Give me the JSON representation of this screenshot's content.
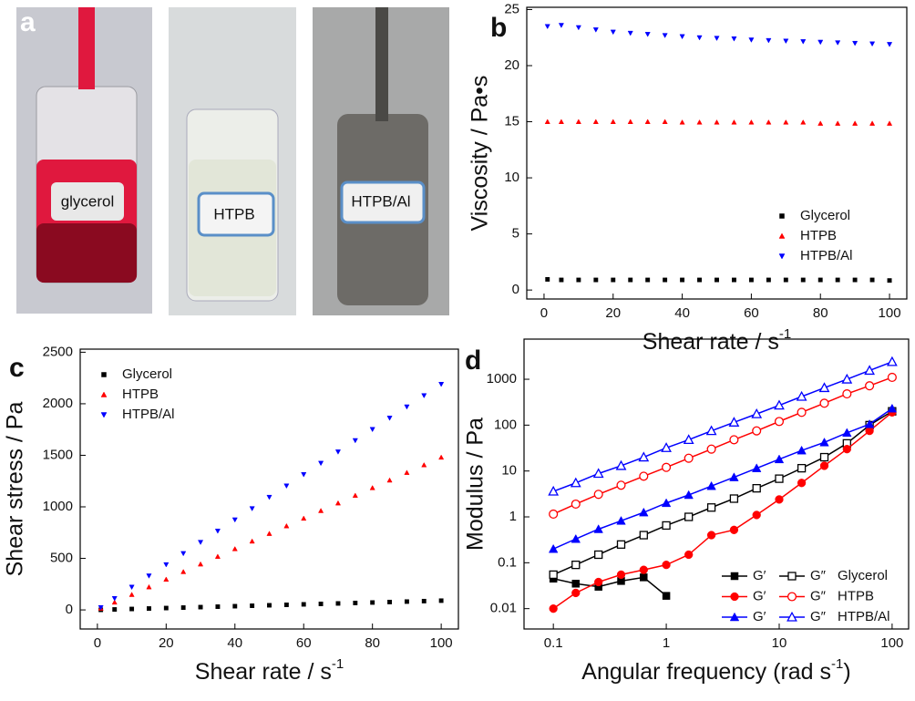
{
  "photo_panel": {
    "panel": "a",
    "labels": [
      "glycerol",
      "HTPB",
      "HTPB/Al"
    ]
  },
  "chart_data": [
    {
      "type": "scatter",
      "panel": "b",
      "xlabel": [
        {
          "text": "Shear rate / s"
        },
        {
          "text": "-1",
          "sup": true
        }
      ],
      "ylabel": "Viscosity / Pa•s",
      "x": [
        1,
        5,
        10,
        15,
        20,
        25,
        30,
        35,
        40,
        45,
        50,
        55,
        60,
        65,
        70,
        75,
        80,
        85,
        90,
        95,
        100
      ],
      "xlim": [
        -5,
        105
      ],
      "xticks": [
        0,
        20,
        40,
        60,
        80,
        100
      ],
      "ylim": [
        -0.8,
        25.2
      ],
      "yticks": [
        0,
        5,
        10,
        15,
        20,
        25
      ],
      "legend": "lower right",
      "series": [
        {
          "name": "Glycerol",
          "color": "#000000",
          "marker": "square",
          "values": [
            0.95,
            0.9,
            0.9,
            0.9,
            0.9,
            0.9,
            0.9,
            0.9,
            0.9,
            0.9,
            0.9,
            0.9,
            0.9,
            0.9,
            0.9,
            0.9,
            0.9,
            0.9,
            0.9,
            0.9,
            0.85
          ]
        },
        {
          "name": "HTPB",
          "color": "#ff0000",
          "marker": "triangle-up",
          "values": [
            15.0,
            15.0,
            15.0,
            15.0,
            15.0,
            15.0,
            15.0,
            15.0,
            14.95,
            14.95,
            14.95,
            14.95,
            14.95,
            14.95,
            14.95,
            14.95,
            14.85,
            14.85,
            14.85,
            14.85,
            14.85
          ]
        },
        {
          "name": "HTPB/Al",
          "color": "#0000ff",
          "marker": "triangle-down",
          "values": [
            23.5,
            23.6,
            23.4,
            23.2,
            23.0,
            22.9,
            22.8,
            22.7,
            22.6,
            22.5,
            22.45,
            22.4,
            22.3,
            22.25,
            22.2,
            22.15,
            22.1,
            22.05,
            22.0,
            21.95,
            21.9
          ]
        }
      ]
    },
    {
      "type": "scatter",
      "panel": "c",
      "xlabel": [
        {
          "text": "Shear rate / s"
        },
        {
          "text": "-1",
          "sup": true
        }
      ],
      "ylabel": "Shear stress / Pa",
      "x": [
        1,
        5,
        10,
        15,
        20,
        25,
        30,
        35,
        40,
        45,
        50,
        55,
        60,
        65,
        70,
        75,
        80,
        85,
        90,
        95,
        100
      ],
      "xlim": [
        -5,
        105
      ],
      "xticks": [
        0,
        20,
        40,
        60,
        80,
        100
      ],
      "ylim": [
        -185,
        2530
      ],
      "yticks": [
        0,
        500,
        1000,
        1500,
        2000,
        2500
      ],
      "legend": "upper left",
      "series": [
        {
          "name": "Glycerol",
          "color": "#000000",
          "marker": "square",
          "values": [
            0.9,
            4.5,
            9,
            13.5,
            18,
            22.5,
            27,
            31.5,
            36,
            40.5,
            45,
            49.5,
            54,
            58.5,
            63,
            67.5,
            72,
            76.5,
            81,
            85.5,
            90
          ]
        },
        {
          "name": "HTPB",
          "color": "#ff0000",
          "marker": "triangle-up",
          "values": [
            15,
            74,
            148,
            222,
            296,
            370,
            444,
            518,
            592,
            666,
            740,
            814,
            888,
            962,
            1036,
            1110,
            1184,
            1258,
            1332,
            1406,
            1480
          ]
        },
        {
          "name": "HTPB/Al",
          "color": "#0000ff",
          "marker": "triangle-down",
          "values": [
            24,
            112,
            222,
            331,
            440,
            548,
            657,
            766,
            875,
            984,
            1094,
            1204,
            1314,
            1424,
            1534,
            1644,
            1752,
            1862,
            1971,
            2080,
            2190
          ]
        }
      ]
    },
    {
      "type": "line",
      "panel": "d",
      "xlabel": [
        {
          "text": "Angular frequency (rad s"
        },
        {
          "text": "-1",
          "sup": true
        },
        {
          "text": ")"
        }
      ],
      "ylabel": "Modulus / Pa",
      "xscale": "log",
      "yscale": "log",
      "x": [
        0.1,
        0.158,
        0.251,
        0.398,
        0.631,
        1,
        1.58,
        2.51,
        3.98,
        6.31,
        10,
        15.8,
        25.1,
        39.8,
        63.1,
        100
      ],
      "xlim": [
        0.055,
        140
      ],
      "xticks": [
        0.1,
        1,
        10,
        100
      ],
      "ylim": [
        0.0036,
        7500
      ],
      "yticks": [
        0.01,
        0.1,
        1,
        10,
        100,
        1000
      ],
      "legend": "lower right",
      "legend_groups": [
        "Glycerol",
        "HTPB",
        "HTPB/Al"
      ],
      "series": [
        {
          "name": "G′",
          "color": "#000000",
          "marker": "square",
          "filled": true,
          "values": [
            0.045,
            0.035,
            0.03,
            0.04,
            0.048,
            0.019,
            null,
            null,
            null,
            null,
            null,
            null,
            null,
            null,
            null,
            null
          ]
        },
        {
          "name": "G″",
          "color": "#000000",
          "marker": "square",
          "filled": false,
          "values": [
            0.055,
            0.09,
            0.15,
            0.25,
            0.4,
            0.65,
            1.0,
            1.6,
            2.5,
            4.2,
            6.8,
            11.5,
            20,
            40,
            100,
            200
          ]
        },
        {
          "name": "G′",
          "color": "#ff0000",
          "marker": "circle",
          "filled": true,
          "values": [
            0.01,
            0.022,
            0.038,
            0.055,
            0.07,
            0.09,
            0.15,
            0.4,
            0.52,
            1.1,
            2.4,
            5.5,
            13,
            30,
            75,
            190
          ]
        },
        {
          "name": "G″",
          "color": "#ff0000",
          "marker": "circle",
          "filled": false,
          "values": [
            1.15,
            1.9,
            3.1,
            4.9,
            7.7,
            12,
            19,
            30,
            48,
            75,
            120,
            190,
            300,
            480,
            720,
            1100
          ]
        },
        {
          "name": "G′",
          "color": "#0000ff",
          "marker": "triangle-up",
          "filled": true,
          "values": [
            0.2,
            0.33,
            0.54,
            0.82,
            1.25,
            2.0,
            3.0,
            4.7,
            7.3,
            11.5,
            18,
            28,
            42,
            68,
            105,
            230
          ]
        },
        {
          "name": "G″",
          "color": "#0000ff",
          "marker": "triangle-up",
          "filled": false,
          "values": [
            3.6,
            5.5,
            8.8,
            13,
            20,
            32,
            48,
            75,
            115,
            175,
            270,
            420,
            650,
            1000,
            1550,
            2400
          ]
        }
      ]
    }
  ]
}
